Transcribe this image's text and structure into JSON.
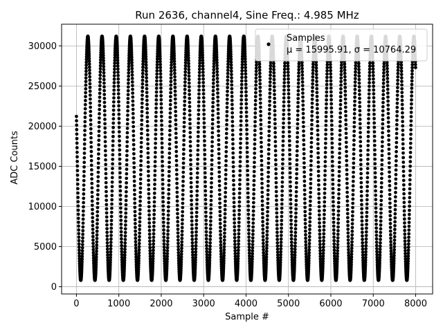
{
  "chart_data": {
    "type": "scatter",
    "title": "Run 2636, channel4, Sine Freq.: 4.985 MHz",
    "xlabel": "Sample #",
    "ylabel": "ADC Counts",
    "xlim": [
      -350,
      8400
    ],
    "ylim": [
      -900,
      32700
    ],
    "xticks": [
      0,
      1000,
      2000,
      3000,
      4000,
      5000,
      6000,
      7000,
      8000
    ],
    "yticks": [
      0,
      5000,
      10000,
      15000,
      20000,
      25000,
      30000
    ],
    "grid": true,
    "legend_placement": "top-right",
    "series": [
      {
        "name": "Samples",
        "stats_label": "μ = 15995.91, σ = 10764.29",
        "marker": "dot",
        "color": "#000000",
        "n_samples": 8000,
        "mean": 15995.91,
        "std": 10764.29,
        "min": 800,
        "max": 31200,
        "sine_frequency_mhz": 4.985
      }
    ]
  }
}
